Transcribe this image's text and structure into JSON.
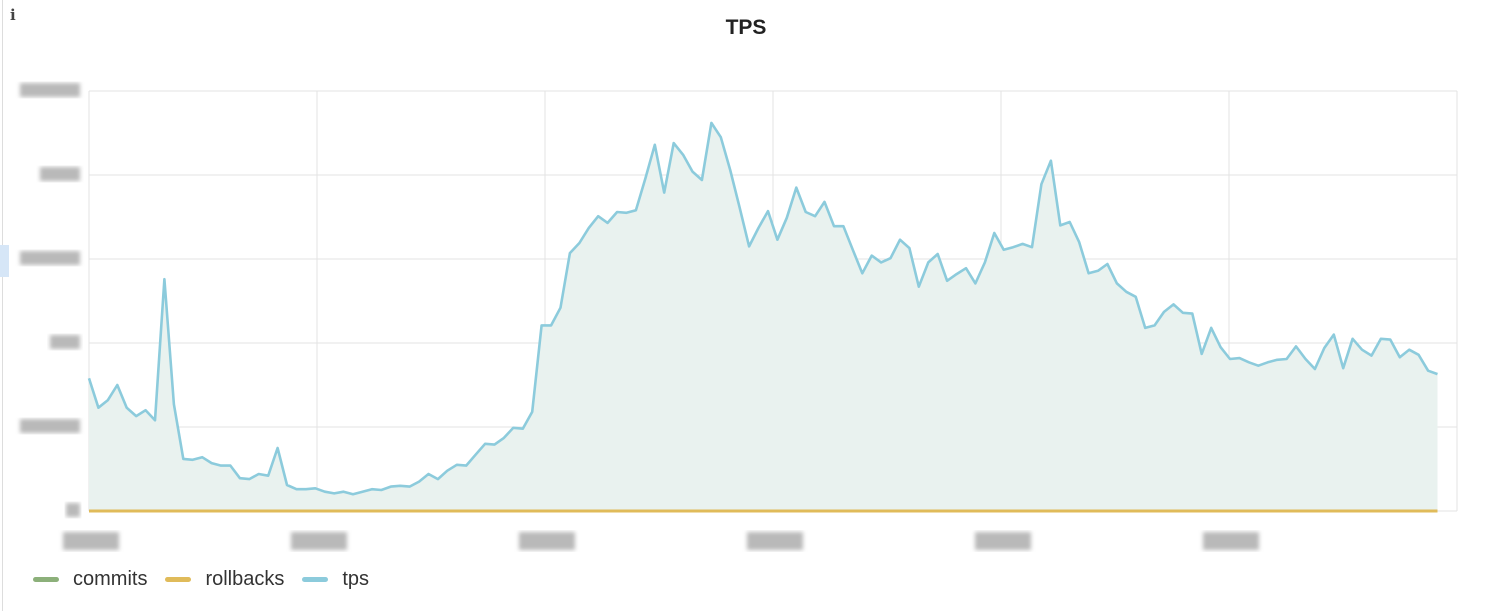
{
  "title": "TPS",
  "info_icon": "info-icon",
  "colors": {
    "commits": "#8cb07a",
    "rollbacks": "#e0bb5a",
    "tps": "#8ccbdc",
    "tps_fill": "#e9f2ef",
    "grid": "#e3e3e3"
  },
  "chart_data": {
    "type": "area",
    "title": "TPS",
    "grid": true,
    "legend_placement": "bottom-left",
    "y_ticks_redacted": true,
    "x_ticks_redacted": true,
    "y_gridlines": 6,
    "x_gridlines": 7,
    "ylim": [
      0,
      5
    ],
    "series": [
      {
        "name": "commits",
        "constant_value": 0
      },
      {
        "name": "rollbacks",
        "constant_value": 0
      },
      {
        "name": "tps",
        "values": [
          1.58,
          1.23,
          1.32,
          1.5,
          1.23,
          1.13,
          1.2,
          1.08,
          2.76,
          1.27,
          0.62,
          0.61,
          0.64,
          0.57,
          0.54,
          0.54,
          0.39,
          0.38,
          0.44,
          0.42,
          0.75,
          0.31,
          0.26,
          0.26,
          0.27,
          0.23,
          0.21,
          0.23,
          0.2,
          0.23,
          0.26,
          0.25,
          0.29,
          0.3,
          0.29,
          0.35,
          0.44,
          0.38,
          0.48,
          0.55,
          0.54,
          0.67,
          0.8,
          0.79,
          0.87,
          0.99,
          0.98,
          1.18,
          2.21,
          2.21,
          2.42,
          3.07,
          3.19,
          3.37,
          3.51,
          3.43,
          3.56,
          3.55,
          3.58,
          3.96,
          4.36,
          3.79,
          4.38,
          4.24,
          4.04,
          3.94,
          4.62,
          4.45,
          4.06,
          3.61,
          3.15,
          3.37,
          3.57,
          3.23,
          3.49,
          3.85,
          3.56,
          3.51,
          3.68,
          3.39,
          3.39,
          3.11,
          2.83,
          3.04,
          2.96,
          3.01,
          3.23,
          3.13,
          2.67,
          2.96,
          3.06,
          2.74,
          2.82,
          2.89,
          2.71,
          2.96,
          3.31,
          3.11,
          3.14,
          3.18,
          3.14,
          3.89,
          4.17,
          3.4,
          3.44,
          3.2,
          2.83,
          2.86,
          2.94,
          2.71,
          2.61,
          2.55,
          2.18,
          2.21,
          2.37,
          2.46,
          2.36,
          2.35,
          1.87,
          2.18,
          1.95,
          1.81,
          1.82,
          1.77,
          1.73,
          1.77,
          1.8,
          1.81,
          1.96,
          1.81,
          1.69,
          1.94,
          2.1,
          1.7,
          2.05,
          1.92,
          1.85,
          2.05,
          2.04,
          1.83,
          1.92,
          1.86,
          1.67,
          1.63
        ]
      }
    ]
  },
  "legend": [
    {
      "label": "commits",
      "key": "commits"
    },
    {
      "label": "rollbacks",
      "key": "rollbacks"
    },
    {
      "label": "tps",
      "key": "tps"
    }
  ]
}
